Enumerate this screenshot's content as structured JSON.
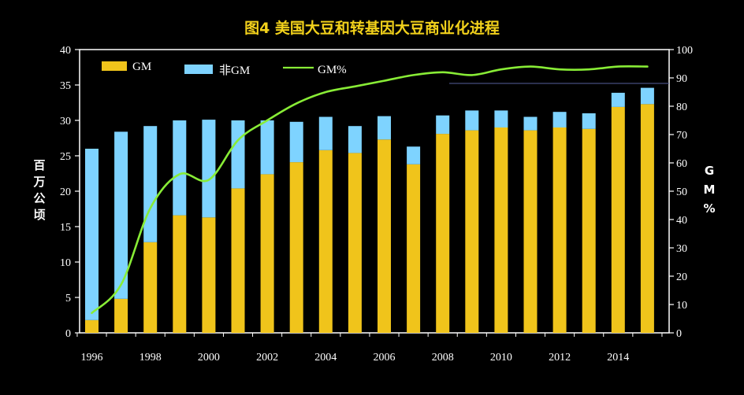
{
  "chart_data": {
    "type": "bar",
    "title": "图4  美国大豆和转基因大豆商业化进程",
    "ylabel": "百万公顷",
    "y2label": "GM%",
    "x": [
      1996,
      1997,
      1998,
      1999,
      2000,
      2001,
      2002,
      2003,
      2004,
      2005,
      2006,
      2007,
      2008,
      2009,
      2010,
      2011,
      2012,
      2013,
      2014,
      2015
    ],
    "xticklabels": [
      "1996",
      "1998",
      "2000",
      "2002",
      "2004",
      "2006",
      "2008",
      "2010",
      "2012",
      "2014"
    ],
    "ylim": [
      0,
      40
    ],
    "yticks": [
      0,
      5,
      10,
      15,
      20,
      25,
      30,
      35,
      40
    ],
    "y2lim": [
      0,
      100
    ],
    "y2ticks": [
      0,
      10,
      20,
      30,
      40,
      50,
      60,
      70,
      80,
      90,
      100
    ],
    "series": [
      {
        "name": "GM",
        "type": "bar",
        "color": "#f0c41b",
        "values": [
          1.8,
          4.8,
          12.8,
          16.6,
          16.3,
          20.4,
          22.4,
          24.1,
          25.8,
          25.4,
          27.3,
          23.8,
          28.1,
          28.6,
          29.0,
          28.6,
          29.0,
          28.8,
          31.9,
          32.3
        ]
      },
      {
        "name": "非GM",
        "type": "bar",
        "color": "#7ed3ff",
        "values": [
          24.2,
          23.6,
          16.4,
          13.4,
          13.8,
          9.6,
          7.6,
          5.7,
          4.7,
          3.8,
          3.3,
          2.5,
          2.6,
          2.8,
          2.4,
          1.9,
          2.2,
          2.2,
          2.0,
          2.3
        ]
      },
      {
        "name": "GM%",
        "type": "line",
        "axis": "right",
        "color": "#88ec36",
        "values": [
          7,
          17,
          44,
          56,
          54,
          68,
          75,
          81,
          85,
          87,
          89,
          91,
          92,
          91,
          93,
          94,
          93,
          93,
          94,
          94
        ]
      }
    ],
    "legend_position": "top-left",
    "grid": false
  }
}
